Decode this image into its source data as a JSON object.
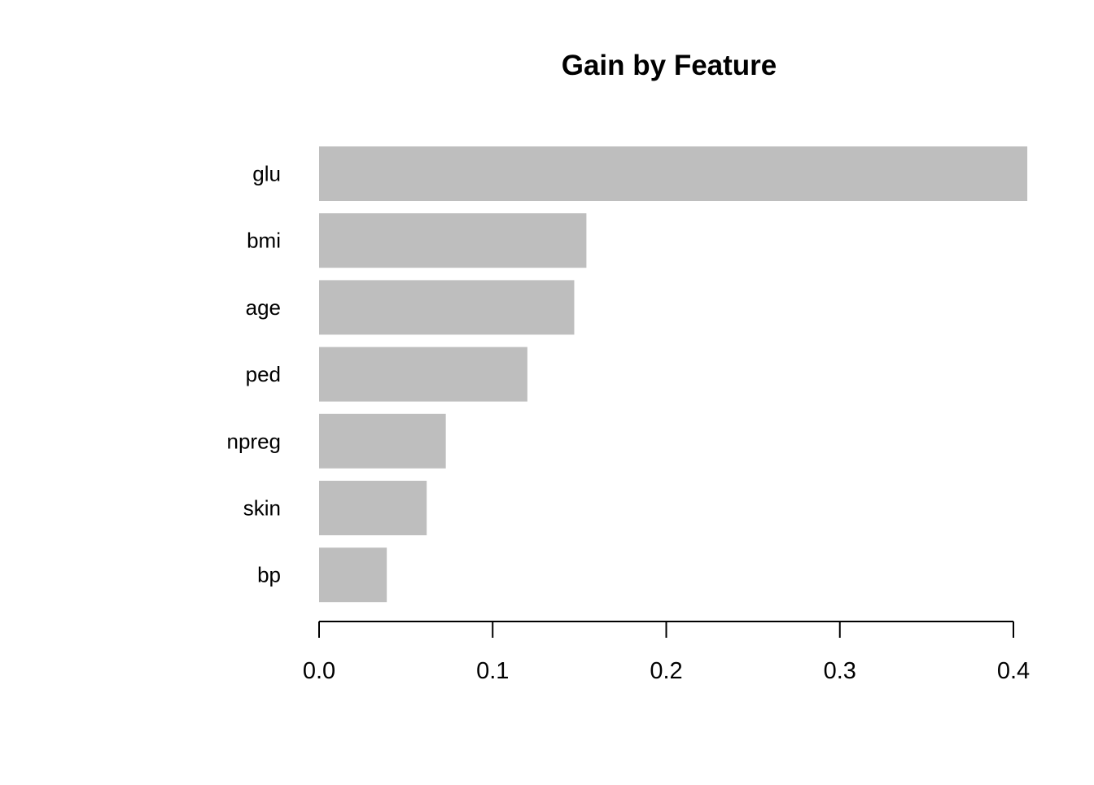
{
  "chart_data": {
    "type": "bar",
    "orientation": "horizontal",
    "title": "Gain by Feature",
    "xlabel": "",
    "ylabel": "",
    "categories": [
      "glu",
      "bmi",
      "age",
      "ped",
      "npreg",
      "skin",
      "bp"
    ],
    "values": [
      0.408,
      0.154,
      0.147,
      0.12,
      0.073,
      0.062,
      0.039
    ],
    "xlim": [
      0,
      0.4
    ],
    "xticks": [
      0.0,
      0.1,
      0.2,
      0.3,
      0.4
    ],
    "xtick_labels": [
      "0.0",
      "0.1",
      "0.2",
      "0.3",
      "0.4"
    ],
    "grid": false,
    "legend": "none",
    "bar_color": "#bebebe"
  }
}
